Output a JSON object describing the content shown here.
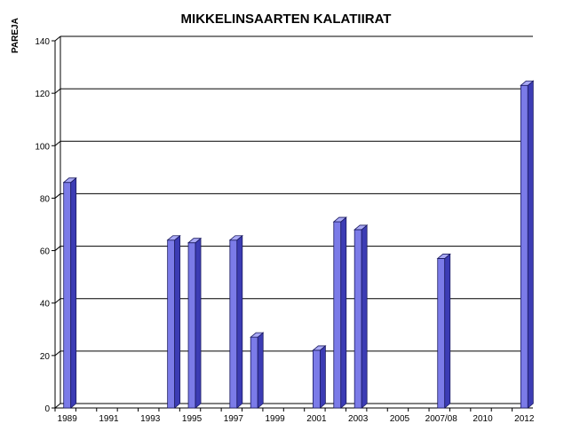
{
  "chart_data": {
    "type": "bar",
    "title": "MIKKELINSAARTEN KALATIIRAT",
    "ylabel": "PAREJA",
    "xlabel": "",
    "ylim": [
      0,
      140
    ],
    "yticks": [
      0,
      20,
      40,
      60,
      80,
      100,
      120,
      140
    ],
    "grid": true,
    "categories": [
      "1989",
      "1990",
      "1991",
      "1992",
      "1993",
      "1994",
      "1995",
      "1996",
      "1997",
      "1998",
      "1999",
      "2000",
      "2001",
      "2002",
      "2003",
      "2004",
      "2005",
      "2006",
      "2007/08",
      "2009",
      "2010",
      "2011",
      "2012"
    ],
    "x_tick_labels": [
      "1989",
      "",
      "1991",
      "",
      "1993",
      "",
      "1995",
      "",
      "1997",
      "",
      "1999",
      "",
      "2001",
      "",
      "2003",
      "",
      "2005",
      "",
      "2007/08",
      "",
      "2010",
      "",
      "2012"
    ],
    "series": [
      {
        "values": [
          86,
          0,
          0,
          0,
          0,
          64,
          63,
          0,
          64,
          27,
          0,
          0,
          22,
          71,
          68,
          0,
          0,
          0,
          57,
          0,
          0,
          0,
          123
        ]
      }
    ],
    "colors": {
      "bar_front": "#7b7be8",
      "bar_side": "#3c3cb4",
      "bar_top": "#a9a9f5",
      "bar_edge": "#1a1a60",
      "grid": "#000000"
    }
  }
}
